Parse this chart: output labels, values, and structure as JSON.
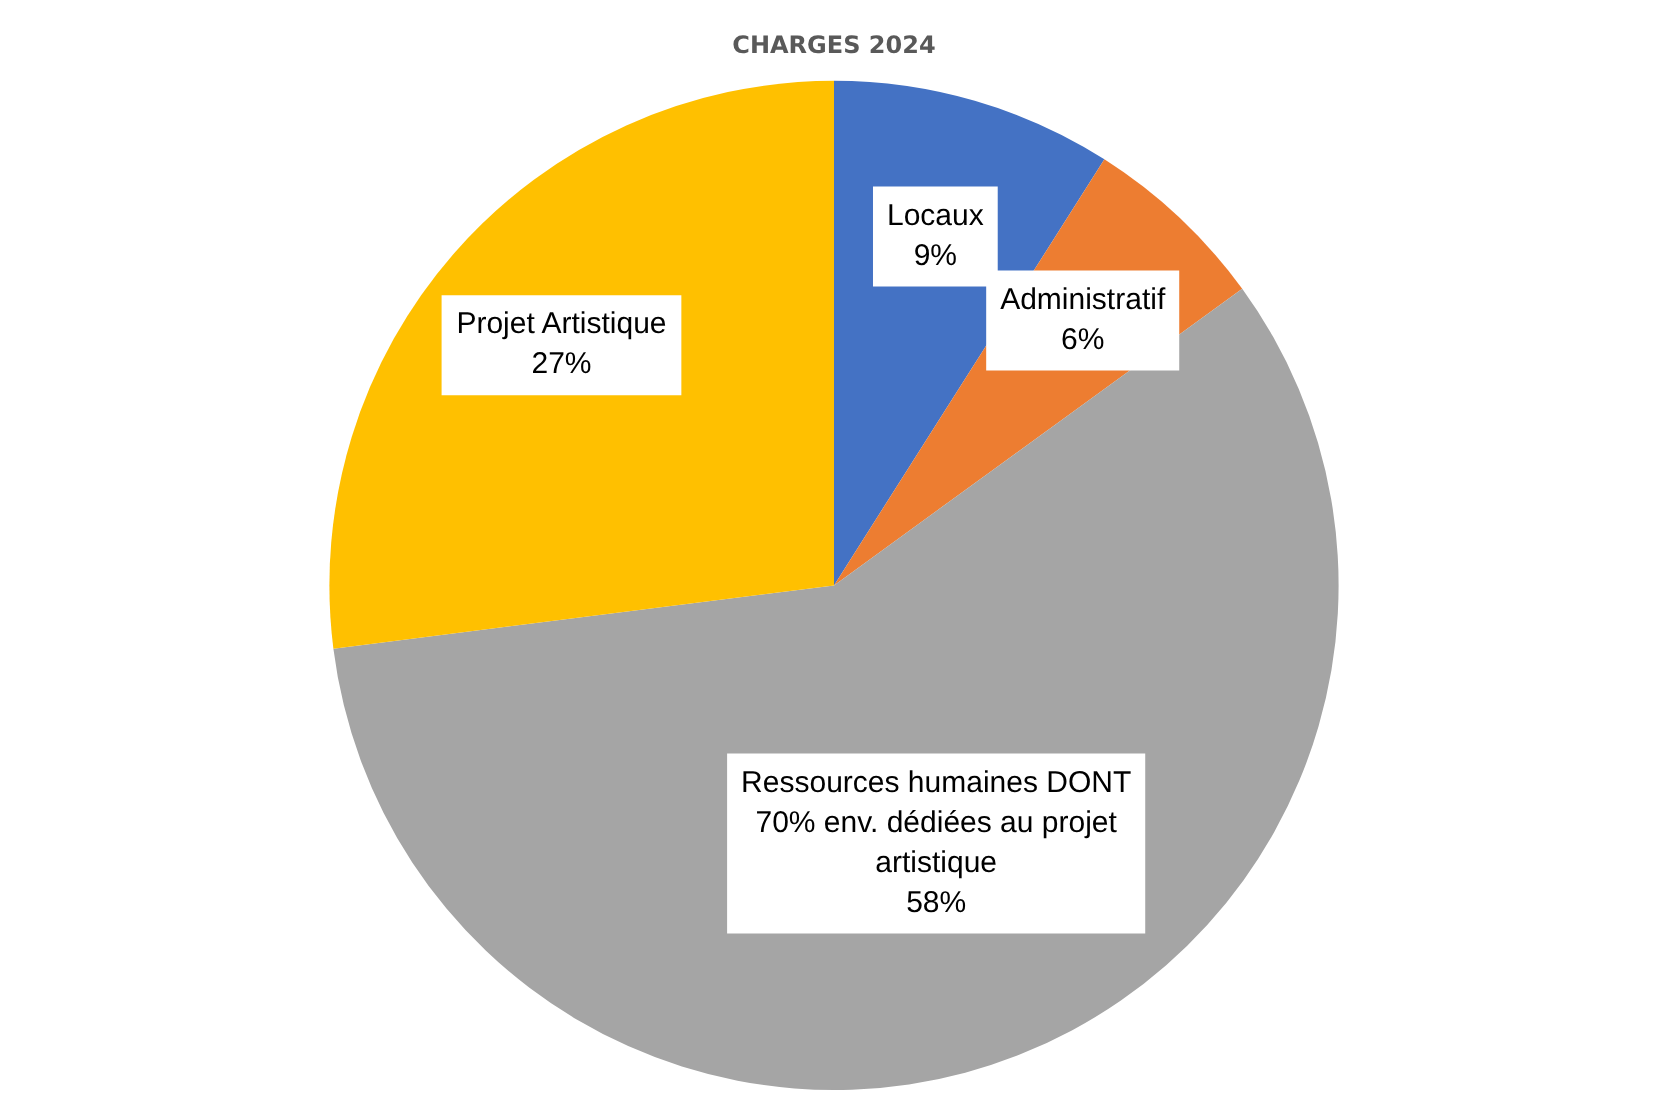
{
  "chart_data": {
    "type": "pie",
    "title": "CHARGES 2024",
    "categories": [
      "Locaux",
      "Administratif",
      "Ressources humaines DONT 70% env. dédiées au projet artistique",
      "Projet Artistique"
    ],
    "values": [
      9,
      6,
      58,
      27
    ],
    "colors": [
      "#4472c4",
      "#ed7d31",
      "#a5a5a5",
      "#ffc000"
    ],
    "value_labels": [
      "9%",
      "6%",
      "58%",
      "27%"
    ],
    "legend": false
  }
}
